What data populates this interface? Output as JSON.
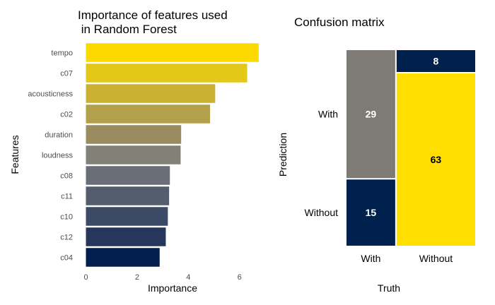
{
  "chart_data": [
    {
      "type": "bar",
      "orientation": "horizontal",
      "title_line1": "Importance of features used",
      "title_line2": " in Random Forest",
      "xlabel": "Importance",
      "ylabel": "Features",
      "xlim": [
        0,
        6.8
      ],
      "xticks": [
        0,
        2,
        4,
        6
      ],
      "grid": false,
      "categories": [
        "tempo",
        "c07",
        "acousticness",
        "c02",
        "duration",
        "loudness",
        "c08",
        "c11",
        "c10",
        "c12",
        "c04"
      ],
      "values": [
        6.75,
        6.3,
        5.05,
        4.85,
        3.72,
        3.7,
        3.28,
        3.25,
        3.2,
        3.12,
        2.88
      ],
      "colors": [
        "#FCDA00",
        "#E3C719",
        "#CBB131",
        "#B2A04B",
        "#9A8C5F",
        "#838077",
        "#6A6E76",
        "#535D6D",
        "#3C4A65",
        "#26375B",
        "#021E4E"
      ]
    },
    {
      "type": "mosaic",
      "title": "Confusion matrix",
      "xlabel": "Truth",
      "ylabel": "Prediction",
      "x_categories": [
        "With",
        "Without"
      ],
      "y_categories": [
        "With",
        "Without"
      ],
      "cells": [
        {
          "truth": "With",
          "prediction": "With",
          "value": 29,
          "color": "#7D7B74",
          "text_color": "#FFFFFF"
        },
        {
          "truth": "With",
          "prediction": "Without",
          "value": 15,
          "color": "#00204D",
          "text_color": "#FFFFFF"
        },
        {
          "truth": "Without",
          "prediction": "With",
          "value": 8,
          "color": "#00204D",
          "text_color": "#FFFFFF"
        },
        {
          "truth": "Without",
          "prediction": "Without",
          "value": 63,
          "color": "#FFDE00",
          "text_color": "#000000"
        }
      ]
    }
  ]
}
